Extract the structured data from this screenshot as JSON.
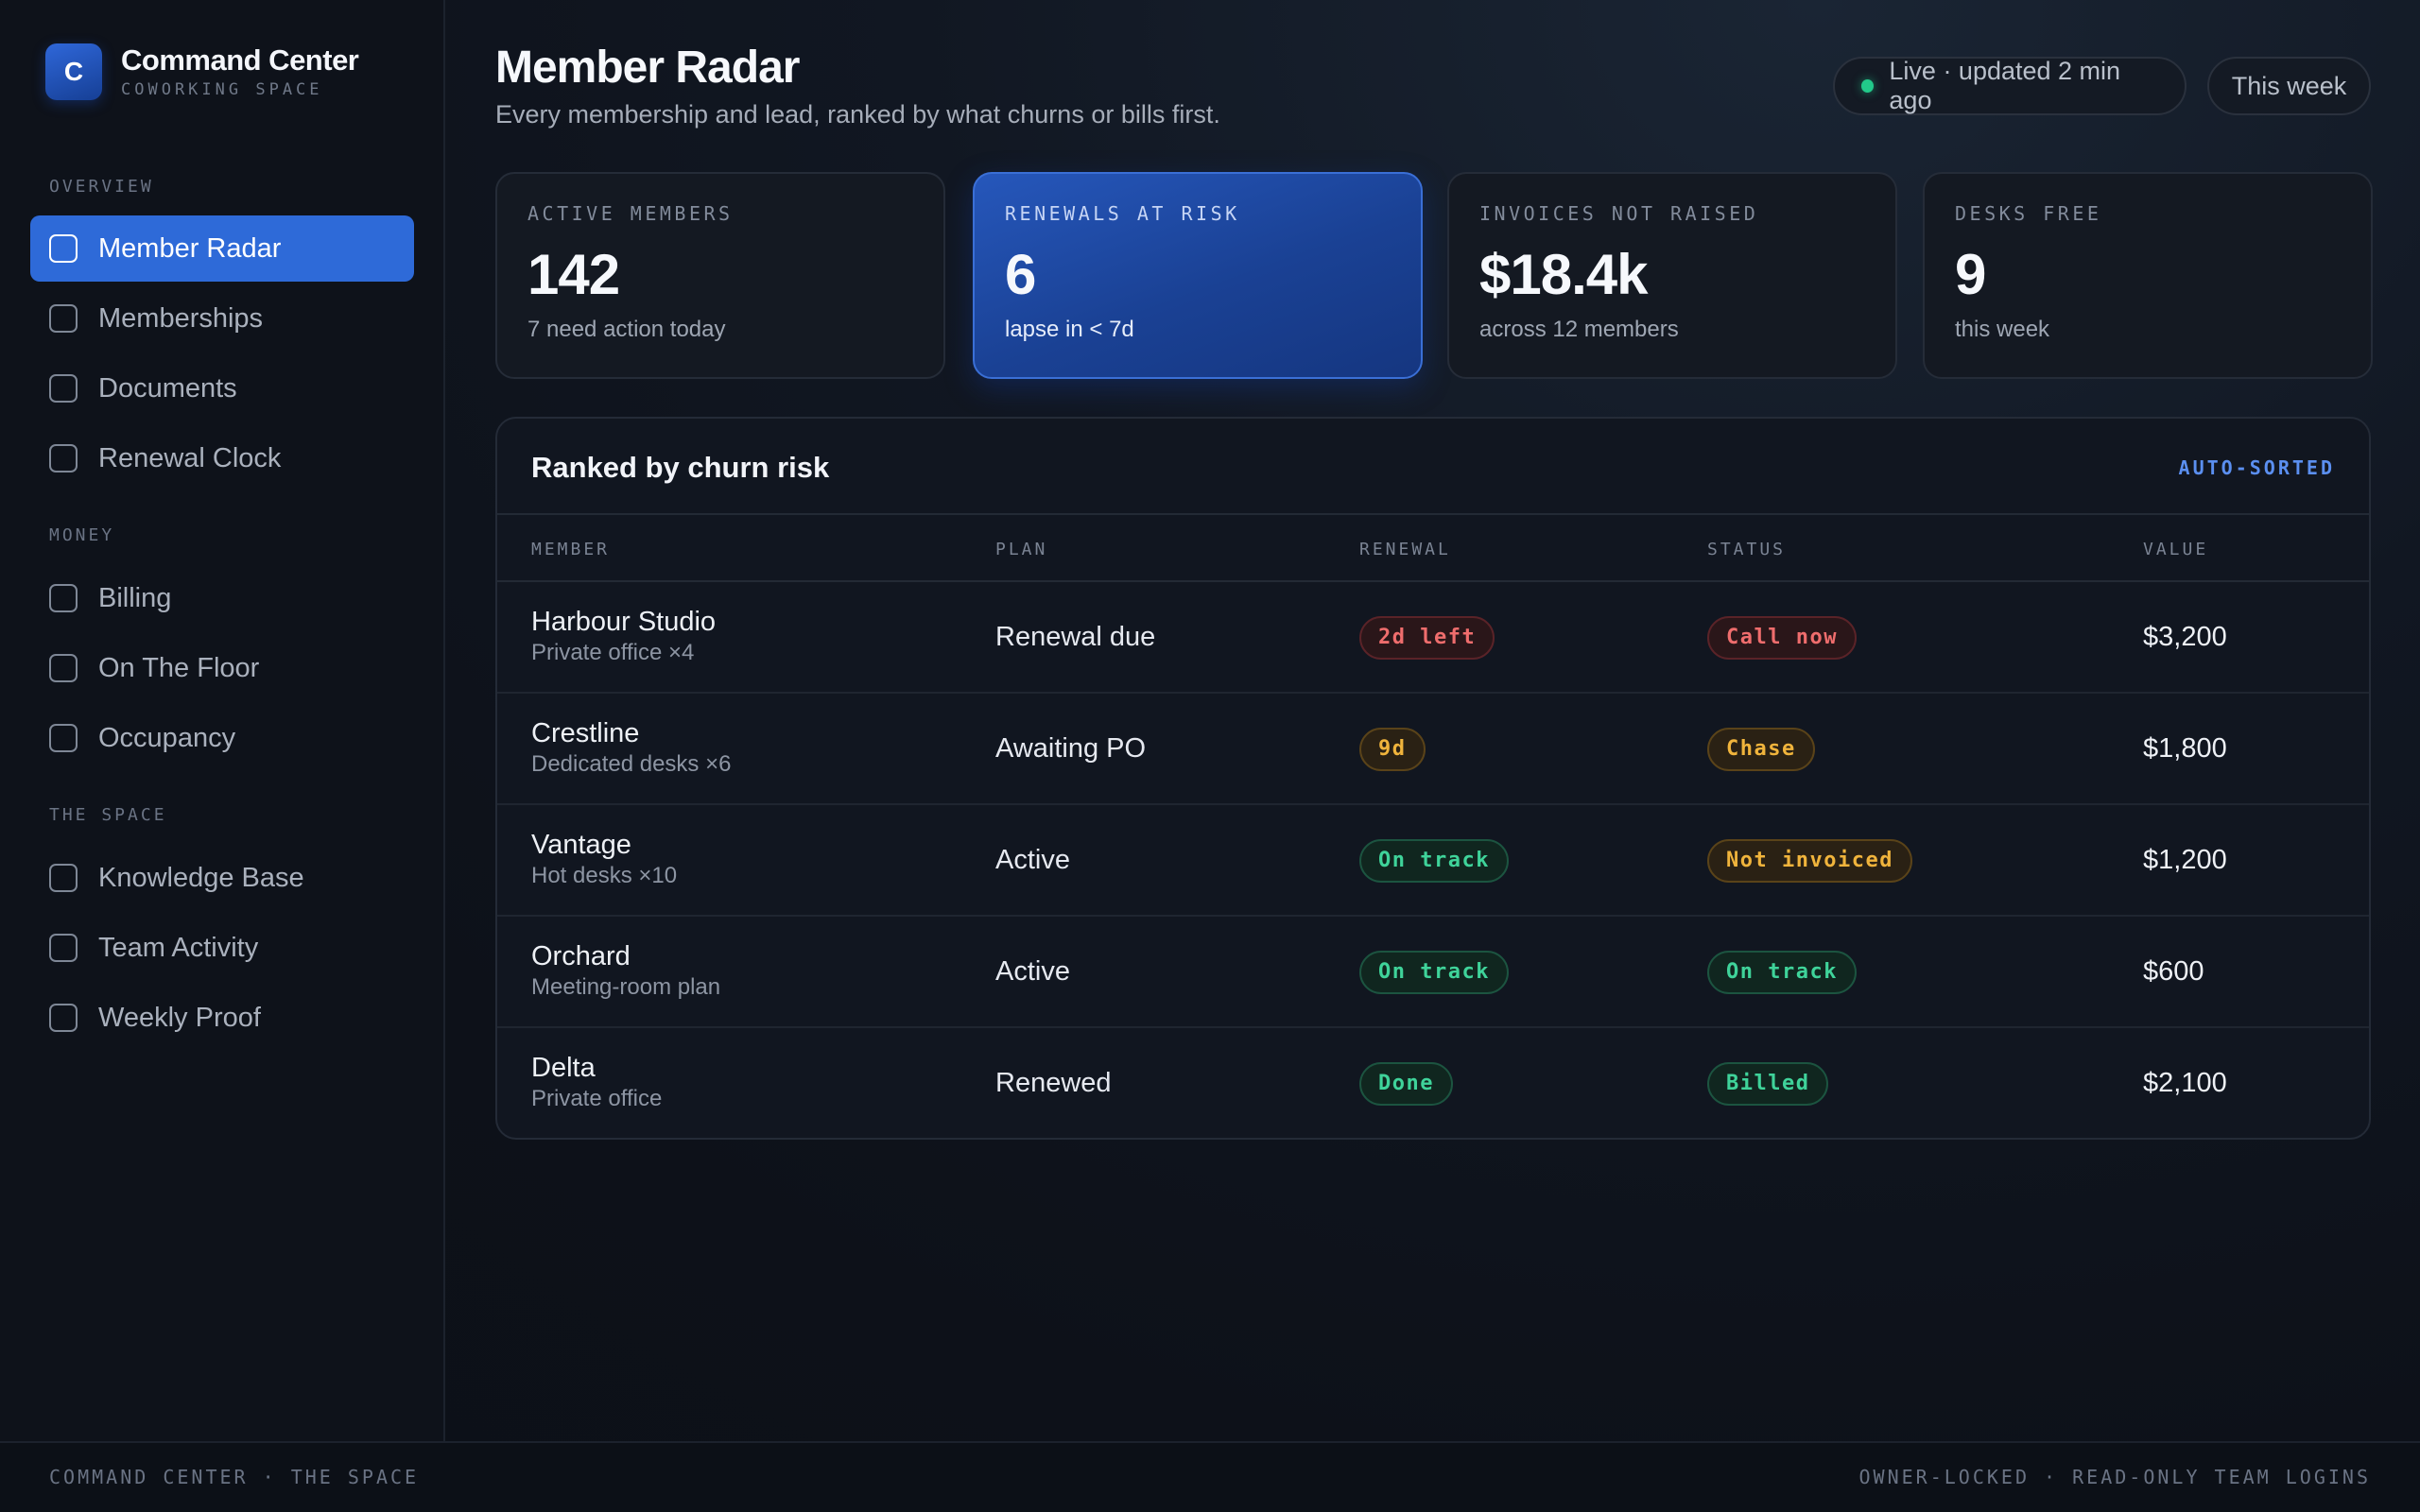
{
  "brand": {
    "logo_letter": "C",
    "title": "Command Center",
    "subtitle": "COWORKING SPACE"
  },
  "sidebar": {
    "sections": [
      {
        "label": "OVERVIEW"
      },
      {
        "label": "MONEY"
      },
      {
        "label": "THE SPACE"
      }
    ],
    "items": [
      {
        "label": "Member Radar",
        "active": true
      },
      {
        "label": "Memberships"
      },
      {
        "label": "Documents"
      },
      {
        "label": "Renewal Clock"
      },
      {
        "label": "Billing"
      },
      {
        "label": "On The Floor"
      },
      {
        "label": "Occupancy"
      },
      {
        "label": "Knowledge Base"
      },
      {
        "label": "Team Activity"
      },
      {
        "label": "Weekly Proof"
      }
    ]
  },
  "header": {
    "title": "Member Radar",
    "subtitle": "Every membership and lead, ranked by what churns or bills first.",
    "live_label": "Live · updated 2 min ago",
    "range_label": "This week"
  },
  "kpis": [
    {
      "label": "ACTIVE MEMBERS",
      "value": "142",
      "note": "7 need action today"
    },
    {
      "label": "RENEWALS AT RISK",
      "value": "6",
      "note": "lapse in < 7d"
    },
    {
      "label": "INVOICES NOT RAISED",
      "value": "$18.4k",
      "note": "across 12 members"
    },
    {
      "label": "DESKS FREE",
      "value": "9",
      "note": "this week"
    }
  ],
  "table": {
    "title": "Ranked by churn risk",
    "tag": "AUTO-SORTED",
    "columns": [
      "MEMBER",
      "PLAN",
      "RENEWAL",
      "STATUS",
      "VALUE"
    ],
    "rows": [
      {
        "member": "Harbour Studio",
        "detail": "Private office ×4",
        "plan": "Renewal due",
        "renewal": "2d left",
        "status": "Call now",
        "value": "$3,200"
      },
      {
        "member": "Crestline",
        "detail": "Dedicated desks ×6",
        "plan": "Awaiting PO",
        "renewal": "9d",
        "status": "Chase",
        "value": "$1,800"
      },
      {
        "member": "Vantage",
        "detail": "Hot desks ×10",
        "plan": "Active",
        "renewal": "On track",
        "status": "Not invoiced",
        "value": "$1,200"
      },
      {
        "member": "Orchard",
        "detail": "Meeting-room plan",
        "plan": "Active",
        "renewal": "On track",
        "status": "On track",
        "value": "$600"
      },
      {
        "member": "Delta",
        "detail": "Private office",
        "plan": "Renewed",
        "renewal": "Done",
        "status": "Billed",
        "value": "$2,100"
      }
    ]
  },
  "footer": {
    "left": "COMMAND CENTER · THE SPACE",
    "right": "OWNER-LOCKED · READ-ONLY TEAM LOGINS"
  },
  "colors": {
    "accent": "#2e6ad8",
    "danger": "#ef6d6d",
    "warning": "#f0b43c",
    "success": "#3fd39a"
  },
  "icons": {
    "nav_item": "checkbox-square-icon",
    "live": "status-dot-icon"
  }
}
